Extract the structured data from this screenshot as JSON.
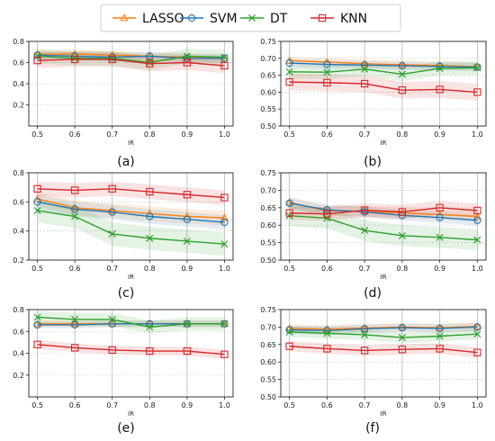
{
  "legend": {
    "placement": "top-center",
    "entries": [
      {
        "name": "LASSO",
        "color": "#ff7f0e",
        "marker": "triangle"
      },
      {
        "name": "SVM",
        "color": "#1f77b4",
        "marker": "circle"
      },
      {
        "name": "DT",
        "color": "#2ca02c",
        "marker": "x"
      },
      {
        "name": "KNN",
        "color": "#d62728",
        "marker": "square"
      }
    ]
  },
  "chart_data": [
    {
      "type": "line",
      "caption": "(a)",
      "xlabel": "IR",
      "ylabel": "",
      "x": [
        0.5,
        0.6,
        0.7,
        0.8,
        0.9,
        1.0
      ],
      "xticks": [
        "0.5",
        "0.6",
        "0.7",
        "0.8",
        "0.9",
        "1.0"
      ],
      "ylim": [
        0.0,
        0.8
      ],
      "yticks": [
        "0.2",
        "0.4",
        "0.6",
        "0.8"
      ],
      "grid": true,
      "series": [
        {
          "name": "LASSO",
          "values": [
            0.68,
            0.68,
            0.67,
            0.66,
            0.65,
            0.64
          ],
          "band": 0.04
        },
        {
          "name": "SVM",
          "values": [
            0.67,
            0.66,
            0.65,
            0.66,
            0.64,
            0.64
          ],
          "band": 0.04
        },
        {
          "name": "DT",
          "values": [
            0.66,
            0.64,
            0.64,
            0.6,
            0.66,
            0.65
          ],
          "band": 0.07
        },
        {
          "name": "KNN",
          "values": [
            0.62,
            0.63,
            0.63,
            0.59,
            0.6,
            0.57
          ],
          "band": 0.07
        }
      ]
    },
    {
      "type": "line",
      "caption": "(b)",
      "xlabel": "IR",
      "ylabel": "",
      "x": [
        0.5,
        0.6,
        0.7,
        0.8,
        0.9,
        1.0
      ],
      "xticks": [
        "0.5",
        "0.6",
        "0.7",
        "0.8",
        "0.9",
        "1.0"
      ],
      "ylim": [
        0.5,
        0.75
      ],
      "yticks": [
        "0.50",
        "0.55",
        "0.60",
        "0.65",
        "0.70",
        "0.75"
      ],
      "grid": true,
      "series": [
        {
          "name": "LASSO",
          "values": [
            0.693,
            0.689,
            0.684,
            0.681,
            0.679,
            0.675
          ],
          "band": 0.012
        },
        {
          "name": "SVM",
          "values": [
            0.686,
            0.682,
            0.68,
            0.678,
            0.676,
            0.674
          ],
          "band": 0.012
        },
        {
          "name": "DT",
          "values": [
            0.66,
            0.659,
            0.668,
            0.653,
            0.67,
            0.672
          ],
          "band": 0.02
        },
        {
          "name": "KNN",
          "values": [
            0.63,
            0.628,
            0.625,
            0.606,
            0.608,
            0.6
          ],
          "band": 0.025
        }
      ]
    },
    {
      "type": "line",
      "caption": "(c)",
      "xlabel": "IR",
      "ylabel": "",
      "x": [
        0.5,
        0.6,
        0.7,
        0.8,
        0.9,
        1.0
      ],
      "xticks": [
        "0.5",
        "0.6",
        "0.7",
        "0.8",
        "0.9",
        "1.0"
      ],
      "ylim": [
        0.2,
        0.8
      ],
      "yticks": [
        "0.2",
        "0.4",
        "0.6",
        "0.8"
      ],
      "grid": true,
      "series": [
        {
          "name": "LASSO",
          "values": [
            0.62,
            0.56,
            0.54,
            0.52,
            0.5,
            0.49
          ],
          "band": 0.05
        },
        {
          "name": "SVM",
          "values": [
            0.6,
            0.55,
            0.53,
            0.5,
            0.48,
            0.46
          ],
          "band": 0.05
        },
        {
          "name": "DT",
          "values": [
            0.54,
            0.5,
            0.38,
            0.35,
            0.33,
            0.31
          ],
          "band": 0.08
        },
        {
          "name": "KNN",
          "values": [
            0.69,
            0.68,
            0.69,
            0.67,
            0.65,
            0.63
          ],
          "band": 0.05
        }
      ]
    },
    {
      "type": "line",
      "caption": "(d)",
      "xlabel": "IR",
      "ylabel": "",
      "x": [
        0.5,
        0.6,
        0.7,
        0.8,
        0.9,
        1.0
      ],
      "xticks": [
        "0.5",
        "0.6",
        "0.7",
        "0.8",
        "0.9",
        "1.0"
      ],
      "ylim": [
        0.5,
        0.75
      ],
      "yticks": [
        "0.50",
        "0.55",
        "0.60",
        "0.65",
        "0.70",
        "0.75"
      ],
      "grid": true,
      "series": [
        {
          "name": "LASSO",
          "values": [
            0.665,
            0.641,
            0.64,
            0.635,
            0.63,
            0.625
          ],
          "band": 0.015
        },
        {
          "name": "SVM",
          "values": [
            0.663,
            0.644,
            0.638,
            0.628,
            0.622,
            0.614
          ],
          "band": 0.015
        },
        {
          "name": "DT",
          "values": [
            0.627,
            0.62,
            0.585,
            0.57,
            0.565,
            0.558
          ],
          "band": 0.03
        },
        {
          "name": "KNN",
          "values": [
            0.635,
            0.632,
            0.643,
            0.638,
            0.65,
            0.642
          ],
          "band": 0.02
        }
      ]
    },
    {
      "type": "line",
      "caption": "(e)",
      "xlabel": "IR",
      "ylabel": "",
      "x": [
        0.5,
        0.6,
        0.7,
        0.8,
        0.9,
        1.0
      ],
      "xticks": [
        "0.5",
        "0.6",
        "0.7",
        "0.8",
        "0.9",
        "1.0"
      ],
      "ylim": [
        0.0,
        0.8
      ],
      "yticks": [
        "0.2",
        "0.4",
        "0.6",
        "0.8"
      ],
      "grid": true,
      "series": [
        {
          "name": "LASSO",
          "values": [
            0.67,
            0.67,
            0.67,
            0.67,
            0.67,
            0.67
          ],
          "band": 0.03
        },
        {
          "name": "SVM",
          "values": [
            0.66,
            0.66,
            0.67,
            0.67,
            0.67,
            0.67
          ],
          "band": 0.03
        },
        {
          "name": "DT",
          "values": [
            0.73,
            0.71,
            0.71,
            0.64,
            0.67,
            0.67
          ],
          "band": 0.06
        },
        {
          "name": "KNN",
          "values": [
            0.48,
            0.45,
            0.43,
            0.42,
            0.42,
            0.39
          ],
          "band": 0.04
        }
      ]
    },
    {
      "type": "line",
      "caption": "(f)",
      "xlabel": "IR",
      "ylabel": "",
      "x": [
        0.5,
        0.6,
        0.7,
        0.8,
        0.9,
        1.0
      ],
      "xticks": [
        "0.5",
        "0.6",
        "0.7",
        "0.8",
        "0.9",
        "1.0"
      ],
      "ylim": [
        0.5,
        0.75
      ],
      "yticks": [
        "0.50",
        "0.55",
        "0.60",
        "0.65",
        "0.70",
        "0.75"
      ],
      "grid": true,
      "series": [
        {
          "name": "LASSO",
          "values": [
            0.696,
            0.694,
            0.697,
            0.7,
            0.698,
            0.702
          ],
          "band": 0.012
        },
        {
          "name": "SVM",
          "values": [
            0.692,
            0.69,
            0.695,
            0.698,
            0.696,
            0.7
          ],
          "band": 0.012
        },
        {
          "name": "DT",
          "values": [
            0.686,
            0.682,
            0.678,
            0.67,
            0.674,
            0.68
          ],
          "band": 0.015
        },
        {
          "name": "KNN",
          "values": [
            0.645,
            0.638,
            0.633,
            0.636,
            0.638,
            0.627
          ],
          "band": 0.015
        }
      ]
    }
  ]
}
